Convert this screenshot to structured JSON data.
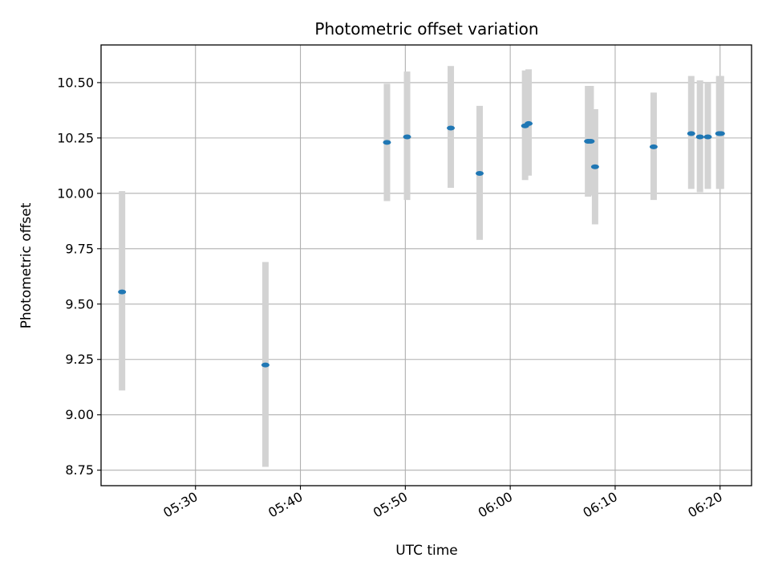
{
  "chart_data": {
    "type": "scatter",
    "title": "Photometric offset variation",
    "xlabel": "UTC time",
    "ylabel": "Photometric offset",
    "x_unit": "UTC time (HH:MM)",
    "xlim": [
      "05:21:00",
      "06:23:00"
    ],
    "ylim": [
      8.68,
      10.67
    ],
    "yticks": [
      8.75,
      9.0,
      9.25,
      9.5,
      9.75,
      10.0,
      10.25,
      10.5
    ],
    "ytick_labels": [
      "8.75",
      "9.00",
      "9.25",
      "9.50",
      "9.75",
      "10.00",
      "10.25",
      "10.50"
    ],
    "xticks": [
      "05:30",
      "05:40",
      "05:50",
      "06:00",
      "06:10",
      "06:20"
    ],
    "grid": true,
    "series": [
      {
        "points": [
          {
            "x": "05:23:00",
            "y": 9.555,
            "ylo": 9.11,
            "yhi": 10.01
          },
          {
            "x": "05:36:40",
            "y": 9.225,
            "ylo": 8.765,
            "yhi": 9.69
          },
          {
            "x": "05:48:15",
            "y": 10.23,
            "ylo": 9.965,
            "yhi": 10.495
          },
          {
            "x": "05:50:10",
            "y": 10.255,
            "ylo": 9.97,
            "yhi": 10.55
          },
          {
            "x": "05:54:20",
            "y": 10.295,
            "ylo": 10.025,
            "yhi": 10.575
          },
          {
            "x": "05:57:05",
            "y": 10.09,
            "ylo": 9.79,
            "yhi": 10.395
          },
          {
            "x": "06:01:25",
            "y": 10.305,
            "ylo": 10.06,
            "yhi": 10.555
          },
          {
            "x": "06:01:45",
            "y": 10.315,
            "ylo": 10.08,
            "yhi": 10.56
          },
          {
            "x": "06:07:25",
            "y": 10.235,
            "ylo": 9.985,
            "yhi": 10.485
          },
          {
            "x": "06:07:40",
            "y": 10.235,
            "ylo": 9.99,
            "yhi": 10.485
          },
          {
            "x": "06:08:05",
            "y": 10.12,
            "ylo": 9.86,
            "yhi": 10.38
          },
          {
            "x": "06:13:40",
            "y": 10.21,
            "ylo": 9.97,
            "yhi": 10.455
          },
          {
            "x": "06:17:15",
            "y": 10.27,
            "ylo": 10.02,
            "yhi": 10.53
          },
          {
            "x": "06:18:05",
            "y": 10.255,
            "ylo": 10.005,
            "yhi": 10.51
          },
          {
            "x": "06:18:50",
            "y": 10.255,
            "ylo": 10.02,
            "yhi": 10.5
          },
          {
            "x": "06:19:55",
            "y": 10.27,
            "ylo": 10.02,
            "yhi": 10.53
          },
          {
            "x": "06:20:05",
            "y": 10.27,
            "ylo": 10.02,
            "yhi": 10.53
          }
        ]
      }
    ],
    "colors": {
      "marker": "#1f77b4",
      "errorbar": "#d3d3d3",
      "grid": "#b0b0b0",
      "axes": "#000000"
    }
  }
}
